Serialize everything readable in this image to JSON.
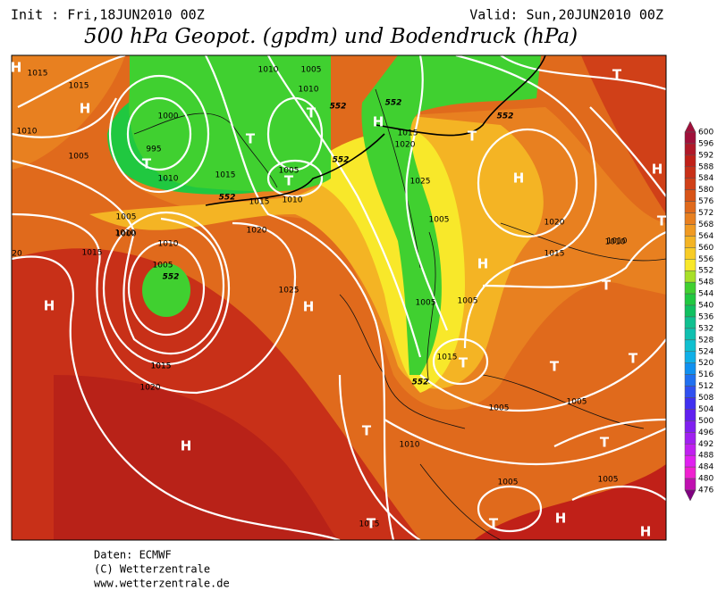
{
  "header": {
    "init": "Init : Fri,18JUN2010 00Z",
    "valid": "Valid: Sun,20JUN2010 00Z",
    "title": "500 hPa Geopot. (gpdm) und Bodendruck (hPa)"
  },
  "legend": {
    "levels": [
      600,
      596,
      592,
      588,
      584,
      580,
      576,
      572,
      568,
      564,
      560,
      556,
      552,
      548,
      544,
      540,
      536,
      532,
      528,
      524,
      520,
      516,
      512,
      508,
      504,
      500,
      496,
      492,
      488,
      484,
      480,
      476
    ],
    "colors": [
      "#a0103a",
      "#b01828",
      "#c02018",
      "#c83018",
      "#d04018",
      "#d85418",
      "#e06a1c",
      "#e88020",
      "#f09a22",
      "#f4b424",
      "#f8cc26",
      "#f8e82a",
      "#a8e028",
      "#40d030",
      "#20c840",
      "#10c060",
      "#10c090",
      "#10c0b0",
      "#10c0d0",
      "#10b0e8",
      "#1090f0",
      "#2070f0",
      "#3050f0",
      "#4030f0",
      "#6020f0",
      "#8020f0",
      "#a020f0",
      "#c020f0",
      "#e020f0",
      "#f020d0",
      "#c010b0",
      "#800080"
    ]
  },
  "isobar_labels": [
    "1015",
    "1015",
    "1010",
    "1005",
    "1000",
    "995",
    "1010",
    "1015",
    "1010",
    "1005",
    "1010",
    "1015",
    "1020",
    "1005",
    "1010",
    "1015",
    "1020",
    "1025",
    "1005",
    "1010",
    "1015",
    "1020",
    "1025",
    "1015",
    "1010",
    "1005",
    "1000",
    "1005",
    "1010",
    "1015",
    "1020",
    "1005",
    "1010",
    "1015",
    "1005",
    "1005",
    "1005",
    "1010",
    "1005",
    "1015",
    "20",
    "1015",
    "1005"
  ],
  "centers": [
    "H",
    "H",
    "T",
    "T",
    "T",
    "T",
    "T",
    "H",
    "H",
    "H",
    "H",
    "T",
    "H",
    "T",
    "T",
    "T",
    "T",
    "T",
    "H",
    "T",
    "T",
    "H",
    "H",
    "T",
    "H",
    "H",
    "T"
  ],
  "label_552": [
    "552",
    "552",
    "552",
    "552",
    "552",
    "552",
    "552"
  ],
  "footer": [
    "Daten: ECMWF",
    "(C) Wetterzentrale",
    "www.wetterzentrale.de"
  ]
}
